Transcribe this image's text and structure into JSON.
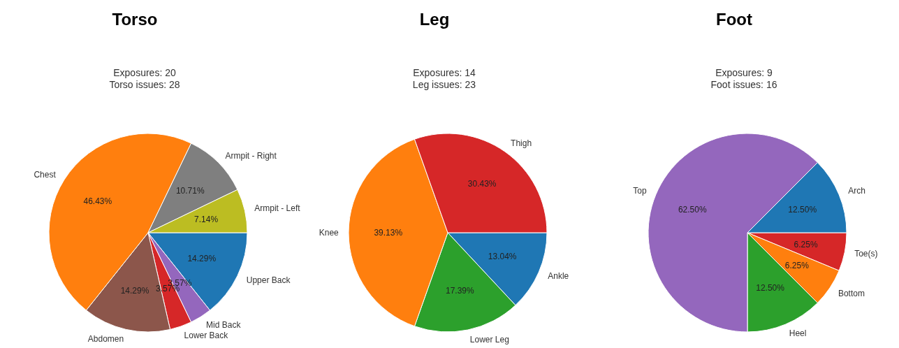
{
  "chart_data": [
    {
      "type": "pie",
      "title": "Torso",
      "subtitle": "Exposures: 20\nTorso issues: 28",
      "categories": [
        "Upper Back",
        "Mid Back",
        "Lower Back",
        "Abdomen",
        "Chest",
        "Armpit - Right",
        "Armpit - Left"
      ],
      "values": [
        14.29,
        3.57,
        3.57,
        14.29,
        46.43,
        10.71,
        7.14
      ],
      "value_labels": [
        "14.29%",
        "3.57%",
        "3.57%",
        "14.29%",
        "46.43%",
        "10.71%",
        "7.14%"
      ],
      "colors": [
        "#1f77b4",
        "#9467bd",
        "#d62728",
        "#8c564b",
        "#ff7f0e",
        "#7f7f7f",
        "#bcbd22"
      ]
    },
    {
      "type": "pie",
      "title": "Leg",
      "subtitle": "Exposures: 14\nLeg issues: 23",
      "categories": [
        "Ankle",
        "Lower Leg",
        "Knee",
        "Thigh"
      ],
      "values": [
        13.04,
        17.39,
        39.13,
        30.43
      ],
      "value_labels": [
        "13.04%",
        "17.39%",
        "39.13%",
        "30.43%"
      ],
      "colors": [
        "#1f77b4",
        "#2ca02c",
        "#ff7f0e",
        "#d62728"
      ]
    },
    {
      "type": "pie",
      "title": "Foot",
      "subtitle": "Exposures: 9\nFoot issues: 16",
      "categories": [
        "Toe(s)",
        "Bottom",
        "Heel",
        "Top",
        "Arch"
      ],
      "values": [
        6.25,
        6.25,
        12.5,
        62.5,
        12.5
      ],
      "value_labels": [
        "6.25%",
        "6.25%",
        "12.50%",
        "62.50%",
        "12.50%"
      ],
      "colors": [
        "#d62728",
        "#ff7f0e",
        "#2ca02c",
        "#9467bd",
        "#1f77b4"
      ]
    }
  ]
}
